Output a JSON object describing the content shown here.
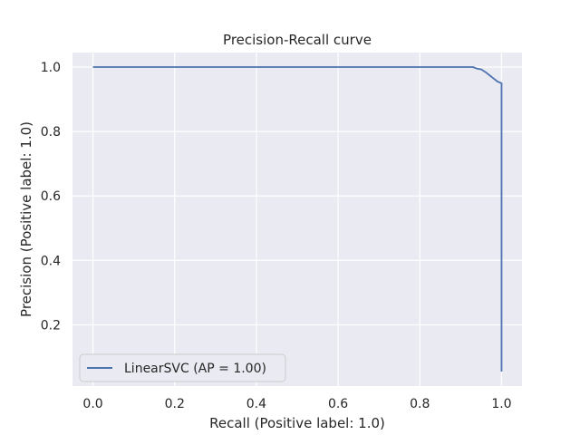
{
  "chart_data": {
    "type": "line",
    "title": "Precision-Recall curve",
    "xlabel": "Recall (Positive label: 1.0)",
    "ylabel": "Precision (Positive label: 1.0)",
    "xlim": [
      -0.05,
      1.05
    ],
    "ylim": [
      0.01,
      1.045
    ],
    "xticks": [
      0.0,
      0.2,
      0.4,
      0.6,
      0.8,
      1.0
    ],
    "xtick_labels": [
      "0.0",
      "0.2",
      "0.4",
      "0.6",
      "0.8",
      "1.0"
    ],
    "yticks": [
      0.2,
      0.4,
      0.6,
      0.8,
      1.0
    ],
    "ytick_labels": [
      "0.2",
      "0.4",
      "0.6",
      "0.8",
      "1.0"
    ],
    "grid": true,
    "legend_position": "lower-left",
    "series": [
      {
        "name": "LinearSVC (AP = 1.00)",
        "color": "#4c72b0",
        "x": [
          0.0,
          0.93,
          0.94,
          0.95,
          0.96,
          0.97,
          0.98,
          0.99,
          1.0,
          1.0
        ],
        "y": [
          1.0,
          1.0,
          0.995,
          0.993,
          0.985,
          0.975,
          0.965,
          0.955,
          0.95,
          0.055
        ]
      }
    ]
  }
}
